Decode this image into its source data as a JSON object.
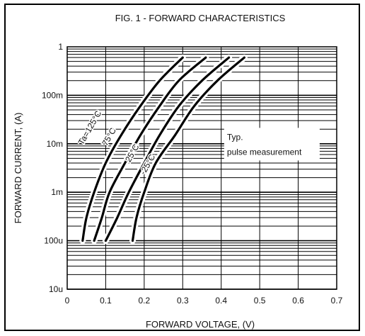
{
  "chart_data": {
    "type": "line",
    "title": "FIG. 1 - FORWARD CHARACTERISTICS",
    "xlabel": "FORWARD  VOLTAGE, (V)",
    "ylabel": "FORWARD  CURRENT, (A)",
    "x_scale": "linear",
    "y_scale": "log",
    "xlim": [
      0,
      0.7
    ],
    "ylim": [
      1e-05,
      1
    ],
    "x_ticks": [
      0,
      0.1,
      0.2,
      0.3,
      0.4,
      0.5,
      0.6,
      0.7
    ],
    "x_tick_labels": [
      "0",
      "0.1",
      "0.2",
      "0.3",
      "0.4",
      "0.5",
      "0.6",
      "0.7"
    ],
    "y_ticks": [
      1e-05,
      0.0001,
      0.001,
      0.01,
      0.1,
      1
    ],
    "y_tick_labels": [
      "10u",
      "100u",
      "1m",
      "10m",
      "100m",
      "1"
    ],
    "grid": true,
    "series": [
      {
        "name": "Ta=125°C",
        "x": [
          0.04,
          0.05,
          0.07,
          0.1,
          0.14,
          0.19,
          0.24,
          0.3
        ],
        "y": [
          0.0001,
          0.0003,
          0.001,
          0.004,
          0.015,
          0.06,
          0.2,
          0.6
        ]
      },
      {
        "name": "75°C",
        "x": [
          0.07,
          0.09,
          0.11,
          0.15,
          0.19,
          0.24,
          0.29,
          0.36
        ],
        "y": [
          0.0001,
          0.0003,
          0.001,
          0.004,
          0.015,
          0.06,
          0.2,
          0.6
        ]
      },
      {
        "name": "25°C",
        "x": [
          0.1,
          0.13,
          0.16,
          0.2,
          0.24,
          0.29,
          0.35,
          0.42
        ],
        "y": [
          0.0001,
          0.0003,
          0.001,
          0.004,
          0.015,
          0.06,
          0.2,
          0.6
        ]
      },
      {
        "name": "-25°C",
        "x": [
          0.17,
          0.18,
          0.2,
          0.23,
          0.28,
          0.33,
          0.39,
          0.46
        ],
        "y": [
          0.0001,
          0.0003,
          0.001,
          0.004,
          0.015,
          0.06,
          0.2,
          0.6
        ]
      }
    ],
    "curve_labels": [
      {
        "text": "Ta=125°C",
        "x": 0.065,
        "y": 0.02,
        "angle": -60
      },
      {
        "text": "75°C",
        "x": 0.115,
        "y": 0.013,
        "angle": -60
      },
      {
        "text": "25°C",
        "x": 0.175,
        "y": 0.006,
        "angle": -60
      },
      {
        "text": "-25°C",
        "x": 0.215,
        "y": 0.0035,
        "angle": -60
      }
    ],
    "annotation": {
      "lines": [
        "Typ.",
        "pulse measurement"
      ],
      "x": 0.415,
      "y": 0.012
    }
  }
}
